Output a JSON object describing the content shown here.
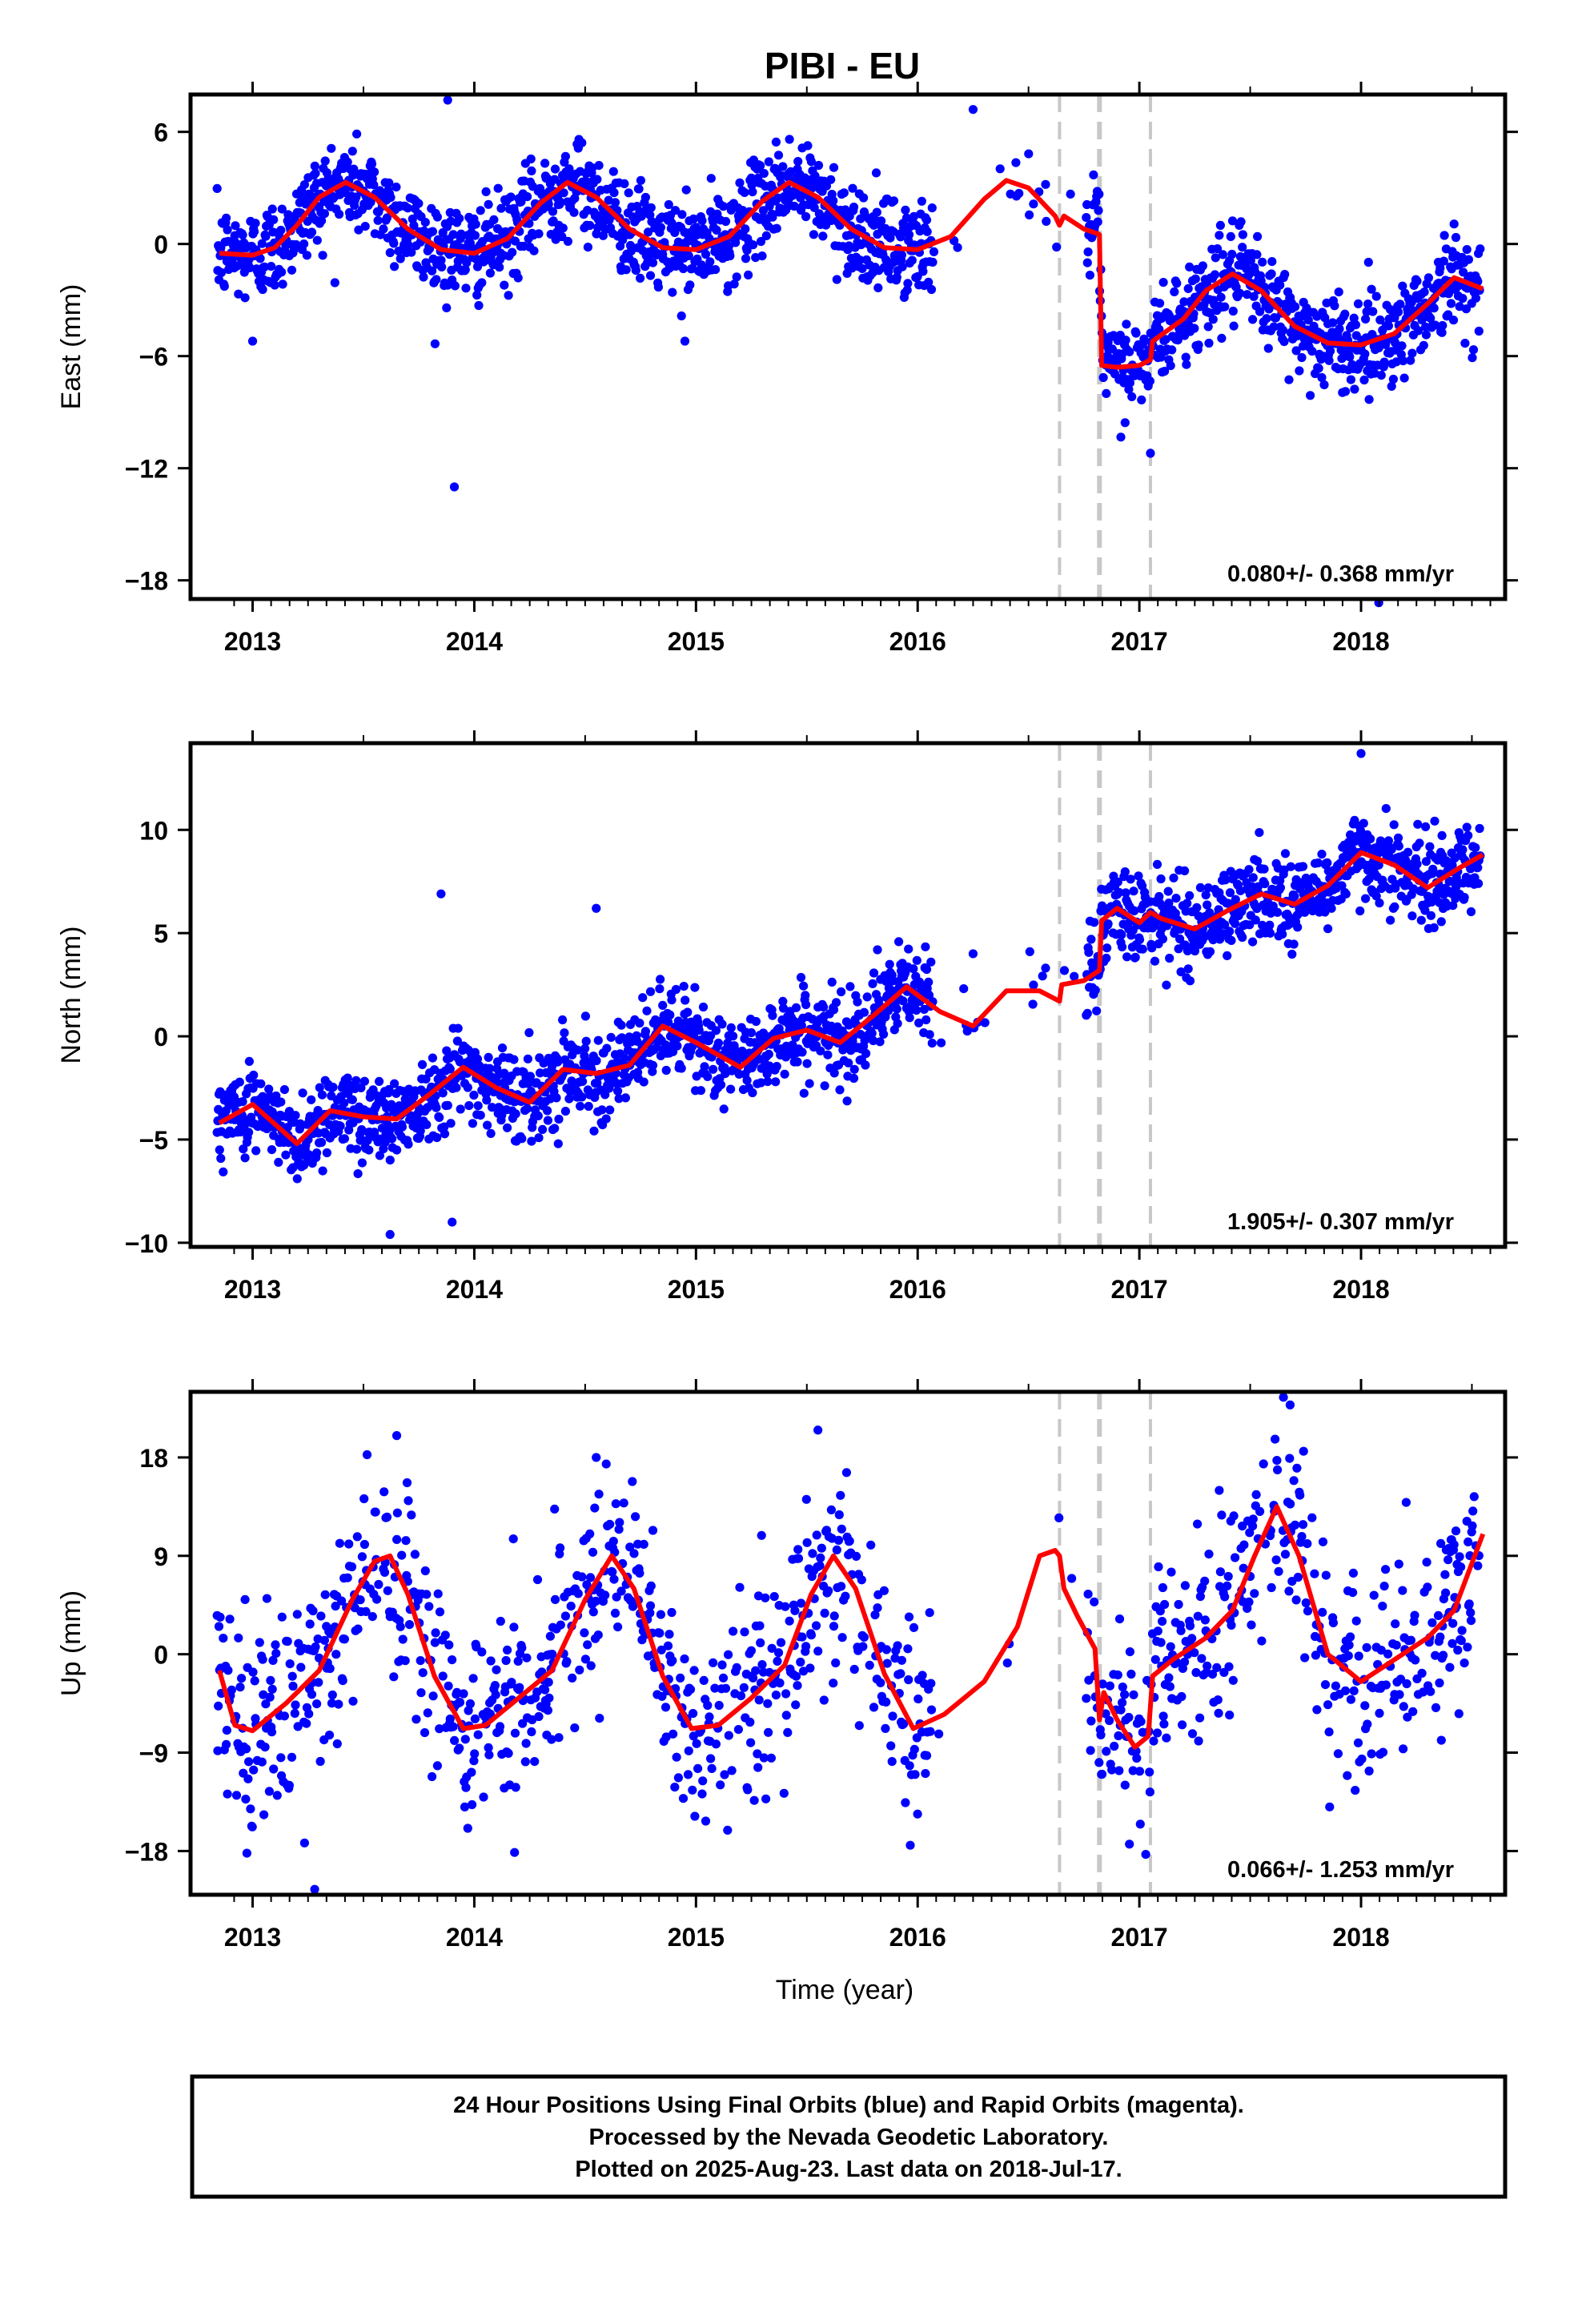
{
  "title": "PIBI - EU",
  "xlabel": "Time (year)",
  "footer": {
    "line1": "24 Hour Positions Using Final Orbits (blue) and Rapid Orbits (magenta).",
    "line2": "Processed by the Nevada Geodetic Laboratory.",
    "line3": "Plotted on 2025-Aug-23. Last data on 2018-Jul-17."
  },
  "colors": {
    "points": "#0000ff",
    "model": "#ff0000",
    "event_lines": "#c8c8c8"
  },
  "chart_data": [
    {
      "type": "scatter",
      "ylabel": "East (mm)",
      "rate": "0.080+/- 0.368 mm/yr",
      "xlim": [
        2012.72,
        2018.65
      ],
      "ylim": [
        -19.0,
        8.0
      ],
      "x_ticks": [
        2013,
        2014,
        2015,
        2016,
        2017,
        2018
      ],
      "y_ticks": [
        -18,
        -12,
        -6,
        0,
        6
      ],
      "event_lines": [
        2016.64,
        2016.82,
        2017.05
      ],
      "model": {
        "x": [
          2012.85,
          2013.0,
          2013.1,
          2013.2,
          2013.3,
          2013.42,
          2013.55,
          2013.7,
          2013.85,
          2014.0,
          2014.15,
          2014.3,
          2014.42,
          2014.55,
          2014.7,
          2014.85,
          2015.0,
          2015.15,
          2015.3,
          2015.42,
          2015.55,
          2015.7,
          2015.85,
          2016.0,
          2016.15,
          2016.3,
          2016.4,
          2016.5,
          2016.62,
          2016.64,
          2016.66,
          2016.75,
          2016.8,
          2016.82,
          2016.83,
          2016.9,
          2017.0,
          2017.05,
          2017.06,
          2017.2,
          2017.3,
          2017.42,
          2017.55,
          2017.7,
          2017.85,
          2018.0,
          2018.15,
          2018.3,
          2018.42,
          2018.55
        ],
        "y": [
          -0.5,
          -0.6,
          -0.2,
          1.0,
          2.5,
          3.3,
          2.5,
          0.8,
          -0.3,
          -0.5,
          0.3,
          2.2,
          3.3,
          2.5,
          0.8,
          -0.2,
          -0.3,
          0.4,
          2.3,
          3.3,
          2.5,
          0.8,
          -0.2,
          -0.3,
          0.4,
          2.4,
          3.4,
          3.0,
          1.5,
          1.0,
          1.5,
          0.8,
          0.6,
          0.5,
          -6.5,
          -6.6,
          -6.5,
          -6.2,
          -5.2,
          -4.0,
          -2.5,
          -1.6,
          -2.5,
          -4.4,
          -5.3,
          -5.4,
          -4.8,
          -3.2,
          -1.8,
          -2.4
        ]
      },
      "points": {
        "stdev": 1.25,
        "outliers": [
          [
            2013.0,
            -5.2
          ],
          [
            2013.88,
            7.7
          ],
          [
            2013.91,
            -13.0
          ],
          [
            2014.95,
            -5.2
          ],
          [
            2016.25,
            7.2
          ],
          [
            2018.08,
            -19.2
          ],
          [
            2017.05,
            -11.2
          ]
        ]
      }
    },
    {
      "type": "scatter",
      "ylabel": "North (mm)",
      "rate": "1.905+/- 0.307 mm/yr",
      "xlim": [
        2012.72,
        2018.65
      ],
      "ylim": [
        -10.2,
        14.2
      ],
      "x_ticks": [
        2013,
        2014,
        2015,
        2016,
        2017,
        2018
      ],
      "y_ticks": [
        -10,
        -5,
        0,
        5,
        10
      ],
      "event_lines": [
        2016.64,
        2016.82,
        2017.05
      ],
      "model": {
        "x": [
          2012.85,
          2013.0,
          2013.2,
          2013.35,
          2013.5,
          2013.65,
          2013.8,
          2013.95,
          2014.1,
          2014.25,
          2014.4,
          2014.55,
          2014.7,
          2014.85,
          2015.0,
          2015.2,
          2015.35,
          2015.5,
          2015.65,
          2015.8,
          2015.95,
          2016.1,
          2016.25,
          2016.4,
          2016.55,
          2016.64,
          2016.65,
          2016.75,
          2016.82,
          2016.83,
          2016.9,
          2017.0,
          2017.05,
          2017.1,
          2017.25,
          2017.4,
          2017.55,
          2017.7,
          2017.85,
          2018.0,
          2018.15,
          2018.3,
          2018.45,
          2018.55
        ],
        "y": [
          -4.2,
          -3.3,
          -5.2,
          -3.6,
          -3.9,
          -4.0,
          -2.8,
          -1.5,
          -2.5,
          -3.2,
          -1.6,
          -1.8,
          -1.4,
          0.5,
          -0.3,
          -1.5,
          -0.1,
          0.3,
          -0.3,
          1.0,
          2.4,
          1.2,
          0.5,
          2.2,
          2.2,
          1.7,
          2.5,
          2.7,
          3.2,
          5.6,
          6.2,
          5.5,
          6.0,
          5.7,
          5.2,
          6.1,
          6.9,
          6.4,
          7.3,
          8.9,
          8.3,
          7.2,
          8.2,
          8.8
        ]
      },
      "points": {
        "stdev": 1.05,
        "outliers": [
          [
            2013.85,
            6.9
          ],
          [
            2014.55,
            6.2
          ],
          [
            2013.9,
            -9.0
          ],
          [
            2013.62,
            -9.6
          ],
          [
            2018.0,
            13.7
          ],
          [
            2016.25,
            4.0
          ]
        ]
      }
    },
    {
      "type": "scatter",
      "ylabel": "Up (mm)",
      "rate": "0.066+/- 1.253 mm/yr",
      "xlim": [
        2012.72,
        2018.65
      ],
      "ylim": [
        -22.0,
        24.0
      ],
      "x_ticks": [
        2013,
        2014,
        2015,
        2016,
        2017,
        2018
      ],
      "y_ticks": [
        -18,
        -9,
        0,
        9,
        18
      ],
      "event_lines": [
        2016.64,
        2016.82,
        2017.05
      ],
      "model": {
        "x": [
          2012.85,
          2012.92,
          2013.0,
          2013.15,
          2013.3,
          2013.45,
          2013.55,
          2013.62,
          2013.7,
          2013.82,
          2013.95,
          2014.05,
          2014.2,
          2014.35,
          2014.5,
          2014.62,
          2014.72,
          2014.85,
          2014.98,
          2015.1,
          2015.25,
          2015.4,
          2015.52,
          2015.62,
          2015.72,
          2015.85,
          2015.98,
          2016.12,
          2016.3,
          2016.45,
          2016.55,
          2016.62,
          2016.64,
          2016.66,
          2016.72,
          2016.8,
          2016.82,
          2016.84,
          2016.9,
          2016.98,
          2017.04,
          2017.06,
          2017.15,
          2017.3,
          2017.42,
          2017.52,
          2017.62,
          2017.72,
          2017.85,
          2018.0,
          2018.15,
          2018.3,
          2018.42,
          2018.55
        ],
        "y": [
          -1.5,
          -6.5,
          -7.0,
          -4.5,
          -1.5,
          5.0,
          8.5,
          9.0,
          5.5,
          -2.0,
          -6.8,
          -6.5,
          -4.0,
          -1.5,
          5.0,
          9.0,
          6.0,
          -2.0,
          -6.8,
          -6.5,
          -4.0,
          -1.0,
          5.5,
          9.0,
          6.0,
          -1.8,
          -6.8,
          -5.5,
          -2.5,
          2.5,
          9.0,
          9.5,
          9.0,
          6.0,
          3.5,
          0.5,
          -6.0,
          -3.5,
          -6.0,
          -8.5,
          -7.5,
          -2.0,
          -0.5,
          1.5,
          4.0,
          9.0,
          13.5,
          9.0,
          0.0,
          -2.5,
          -0.5,
          1.5,
          4.0,
          11.0
        ]
      },
      "points": {
        "stdev": 4.6,
        "outliers": [
          [
            2013.28,
            -21.5
          ],
          [
            2013.65,
            20.0
          ],
          [
            2017.65,
            23.5
          ],
          [
            2017.68,
            22.8
          ],
          [
            2014.55,
            18.0
          ],
          [
            2015.55,
            20.5
          ]
        ]
      }
    }
  ]
}
